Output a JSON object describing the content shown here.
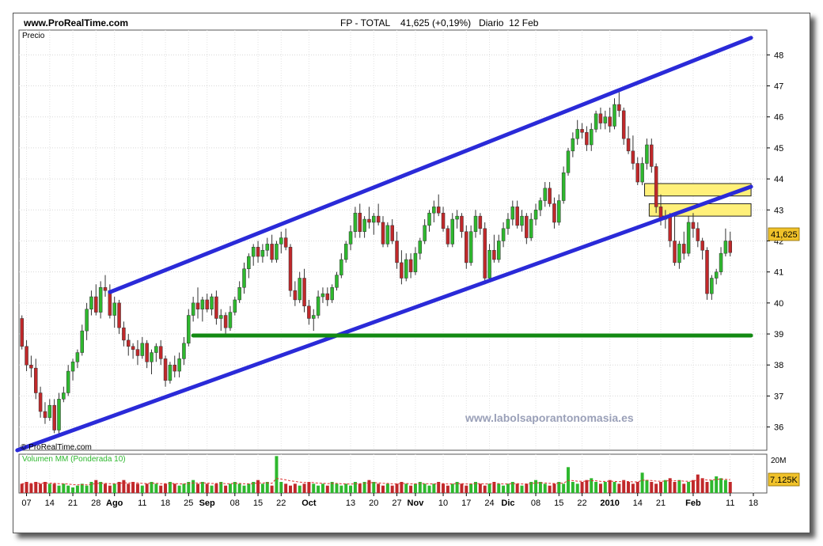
{
  "header": {
    "site": "www.ProRealTime.com",
    "title": "FP - TOTAL    41,625 (+0,19%)   Diario  12 Feb"
  },
  "panels": {
    "price_label": "Precio",
    "copyright": "© ProRealTime.com",
    "volume_label": "Volumen MM (Ponderada 10)",
    "watermark": "www.labolsaporantonomasia.es"
  },
  "colors": {
    "up": "#2eb82e",
    "down": "#c0282a",
    "channel": "#2a2ad8",
    "support": "#138a13",
    "zone_fill": "#fff07a",
    "zone_stroke": "#222222",
    "last_price_bg": "#f0c22a",
    "volume_ma": "#e03030",
    "watermark": "#9aa0b8"
  },
  "chart_data": [
    {
      "type": "candlestick",
      "title": "FP - TOTAL",
      "ylabel": "Precio",
      "ylim": [
        35.25,
        48.8
      ],
      "yticks": [
        36,
        37,
        38,
        39,
        40,
        41,
        42,
        43,
        44,
        45,
        46,
        47,
        48
      ],
      "x_tick_labels": [
        {
          "day": 1,
          "label": "07"
        },
        {
          "day": 6,
          "label": "14"
        },
        {
          "day": 11,
          "label": "21"
        },
        {
          "day": 16,
          "label": "28"
        },
        {
          "day": 20,
          "label": "Ago",
          "bold": true
        },
        {
          "day": 26,
          "label": "11"
        },
        {
          "day": 31,
          "label": "18"
        },
        {
          "day": 36,
          "label": "25"
        },
        {
          "day": 40,
          "label": "Sep",
          "bold": true
        },
        {
          "day": 46,
          "label": "08"
        },
        {
          "day": 51,
          "label": "15"
        },
        {
          "day": 56,
          "label": "22"
        },
        {
          "day": 62,
          "label": "Oct",
          "bold": true
        },
        {
          "day": 71,
          "label": "13"
        },
        {
          "day": 76,
          "label": "20"
        },
        {
          "day": 81,
          "label": "27"
        },
        {
          "day": 85,
          "label": "Nov",
          "bold": true
        },
        {
          "day": 91,
          "label": "10"
        },
        {
          "day": 96,
          "label": "17"
        },
        {
          "day": 101,
          "label": "24"
        },
        {
          "day": 105,
          "label": "Dic",
          "bold": true
        },
        {
          "day": 111,
          "label": "08"
        },
        {
          "day": 116,
          "label": "15"
        },
        {
          "day": 121,
          "label": "22"
        },
        {
          "day": 127,
          "label": "2010",
          "bold": true
        },
        {
          "day": 133,
          "label": "14"
        },
        {
          "day": 138,
          "label": "21"
        },
        {
          "day": 145,
          "label": "Feb",
          "bold": true
        },
        {
          "day": 153,
          "label": "11"
        },
        {
          "day": 158,
          "label": "18"
        }
      ],
      "last_price": 41.625,
      "last_price_label": "41,625",
      "candles": [
        [
          39.5,
          39.6,
          38.5,
          38.6
        ],
        [
          38.6,
          38.8,
          37.8,
          38
        ],
        [
          38,
          38.3,
          37.6,
          37.9
        ],
        [
          37.9,
          38.2,
          36.9,
          37.1
        ],
        [
          37.1,
          37.3,
          36.3,
          36.5
        ],
        [
          36.5,
          36.8,
          36.1,
          36.3
        ],
        [
          36.3,
          36.9,
          36.2,
          36.7
        ],
        [
          36.7,
          36.9,
          35.8,
          35.9
        ],
        [
          35.9,
          37.1,
          35.8,
          36.9
        ],
        [
          36.9,
          37.3,
          36.8,
          37.1
        ],
        [
          37.1,
          38,
          37,
          37.8
        ],
        [
          37.8,
          38.2,
          37.5,
          38.1
        ],
        [
          38.1,
          38.5,
          37.9,
          38.4
        ],
        [
          38.4,
          39.3,
          38.3,
          39.1
        ],
        [
          39.1,
          40,
          38.8,
          39.8
        ],
        [
          39.8,
          40.4,
          39.6,
          40.2
        ],
        [
          40.2,
          40.6,
          39.6,
          39.7
        ],
        [
          39.7,
          40.7,
          39.5,
          40.5
        ],
        [
          40.5,
          40.9,
          40.2,
          40.4
        ],
        [
          40.4,
          40.6,
          39.5,
          39.6
        ],
        [
          39.6,
          40.2,
          39.2,
          40
        ],
        [
          40,
          40.1,
          39,
          39.2
        ],
        [
          39.2,
          39.4,
          38.6,
          38.8
        ],
        [
          38.8,
          39,
          38.3,
          38.6
        ],
        [
          38.6,
          38.7,
          38.2,
          38.5
        ],
        [
          38.5,
          38.8,
          38,
          38.3
        ],
        [
          38.3,
          38.9,
          38.2,
          38.7
        ],
        [
          38.7,
          38.8,
          37.9,
          38.1
        ],
        [
          38.1,
          38.5,
          37.7,
          38.4
        ],
        [
          38.4,
          38.7,
          38.1,
          38.6
        ],
        [
          38.6,
          38.8,
          38,
          38.2
        ],
        [
          38.2,
          38.3,
          37.3,
          37.5
        ],
        [
          37.5,
          38.1,
          37.4,
          38
        ],
        [
          38,
          38.3,
          37.6,
          37.8
        ],
        [
          37.8,
          38.4,
          37.6,
          38.2
        ],
        [
          38.2,
          38.9,
          38,
          38.7
        ],
        [
          38.7,
          39.8,
          38.6,
          39.6
        ],
        [
          39.6,
          40.2,
          39.4,
          40
        ],
        [
          40,
          40.5,
          39.5,
          39.8
        ],
        [
          39.8,
          40.2,
          39.4,
          40.1
        ],
        [
          40.1,
          40.3,
          39.7,
          39.8
        ],
        [
          39.8,
          40.3,
          39.6,
          40.2
        ],
        [
          40.2,
          40.4,
          39.3,
          39.5
        ],
        [
          39.5,
          39.8,
          39.1,
          39.6
        ],
        [
          39.6,
          39.7,
          39,
          39.2
        ],
        [
          39.2,
          39.9,
          39.1,
          39.7
        ],
        [
          39.7,
          40.2,
          39.6,
          40.1
        ],
        [
          40.1,
          40.7,
          40,
          40.5
        ],
        [
          40.5,
          41.3,
          40.3,
          41.1
        ],
        [
          41.1,
          41.6,
          40.8,
          41.5
        ],
        [
          41.5,
          41.9,
          41.2,
          41.8
        ],
        [
          41.8,
          42,
          41.3,
          41.5
        ],
        [
          41.5,
          41.9,
          41.3,
          41.7
        ],
        [
          41.7,
          42.1,
          41.5,
          41.9
        ],
        [
          41.9,
          42.2,
          41.3,
          41.4
        ],
        [
          41.4,
          42,
          41.3,
          41.9
        ],
        [
          41.9,
          42.3,
          41.6,
          42.1
        ],
        [
          42.1,
          42.4,
          41.7,
          41.8
        ],
        [
          41.8,
          41.9,
          40.2,
          40.4
        ],
        [
          40.4,
          40.7,
          39.9,
          40.1
        ],
        [
          40.1,
          41,
          40,
          40.8
        ],
        [
          40.8,
          41.1,
          39.7,
          39.9
        ],
        [
          39.9,
          40.1,
          39.3,
          39.5
        ],
        [
          39.5,
          39.8,
          39.1,
          39.6
        ],
        [
          39.6,
          40.4,
          39.5,
          40.2
        ],
        [
          40.2,
          40.5,
          40,
          40.3
        ],
        [
          40.3,
          40.5,
          39.9,
          40.1
        ],
        [
          40.1,
          40.6,
          40,
          40.5
        ],
        [
          40.5,
          41,
          40.4,
          40.9
        ],
        [
          40.9,
          41.6,
          40.8,
          41.4
        ],
        [
          41.4,
          42,
          41.3,
          41.9
        ],
        [
          41.9,
          42.5,
          41.7,
          42.3
        ],
        [
          42.3,
          43.1,
          42.1,
          42.9
        ],
        [
          42.9,
          43.2,
          42.1,
          42.3
        ],
        [
          42.3,
          42.8,
          42.1,
          42.7
        ],
        [
          42.7,
          43.1,
          42.4,
          42.6
        ],
        [
          42.6,
          42.9,
          42.2,
          42.8
        ],
        [
          42.8,
          43.2,
          42.5,
          42.6
        ],
        [
          42.6,
          42.8,
          41.8,
          41.9
        ],
        [
          41.9,
          42.6,
          41.8,
          42.5
        ],
        [
          42.5,
          42.7,
          41.9,
          42
        ],
        [
          42,
          42.3,
          41.1,
          41.3
        ],
        [
          41.3,
          41.7,
          40.6,
          40.8
        ],
        [
          40.8,
          41.6,
          40.7,
          41.4
        ],
        [
          41.4,
          41.6,
          40.8,
          41
        ],
        [
          41,
          41.8,
          40.9,
          41.6
        ],
        [
          41.6,
          42.1,
          41.4,
          42
        ],
        [
          42,
          42.7,
          41.9,
          42.5
        ],
        [
          42.5,
          43,
          42.3,
          42.9
        ],
        [
          42.9,
          43.3,
          42.6,
          43.1
        ],
        [
          43.1,
          43.5,
          42.8,
          42.9
        ],
        [
          42.9,
          43.1,
          42.3,
          42.4
        ],
        [
          42.4,
          42.5,
          41.8,
          41.9
        ],
        [
          41.9,
          42.9,
          41.8,
          42.7
        ],
        [
          42.7,
          43,
          42.4,
          42.8
        ],
        [
          42.8,
          42.9,
          42.1,
          42.3
        ],
        [
          42.3,
          42.5,
          41.1,
          41.3
        ],
        [
          41.3,
          42.5,
          41.2,
          42.3
        ],
        [
          42.3,
          43,
          42.1,
          42.8
        ],
        [
          42.8,
          42.9,
          42.2,
          42.4
        ],
        [
          42.4,
          42.6,
          40.6,
          40.8
        ],
        [
          40.8,
          41.9,
          40.7,
          41.7
        ],
        [
          41.7,
          42.2,
          41.3,
          41.4
        ],
        [
          41.4,
          42.2,
          41.3,
          42
        ],
        [
          42,
          42.6,
          41.8,
          42.4
        ],
        [
          42.4,
          42.9,
          42.2,
          42.7
        ],
        [
          42.7,
          43.3,
          42.5,
          43.1
        ],
        [
          43.1,
          43.3,
          42.4,
          42.5
        ],
        [
          42.5,
          43,
          42.3,
          42.8
        ],
        [
          42.8,
          42.9,
          41.9,
          42.1
        ],
        [
          42.1,
          42.9,
          42,
          42.7
        ],
        [
          42.7,
          43.2,
          42.5,
          43
        ],
        [
          43,
          43.4,
          42.8,
          43.3
        ],
        [
          43.3,
          43.9,
          43.1,
          43.7
        ],
        [
          43.7,
          43.9,
          43.1,
          43.2
        ],
        [
          43.2,
          43.4,
          42.4,
          42.6
        ],
        [
          42.6,
          43.5,
          42.5,
          43.3
        ],
        [
          43.3,
          44.4,
          43.2,
          44.2
        ],
        [
          44.2,
          45,
          44.1,
          44.9
        ],
        [
          44.9,
          45.5,
          44.7,
          45.3
        ],
        [
          45.3,
          45.9,
          45.1,
          45.6
        ],
        [
          45.6,
          45.8,
          45.3,
          45.5
        ],
        [
          45.5,
          45.7,
          44.9,
          45.1
        ],
        [
          45.1,
          45.8,
          44.9,
          45.6
        ],
        [
          45.6,
          46.2,
          45.5,
          46.1
        ],
        [
          46.1,
          46.3,
          45.6,
          45.8
        ],
        [
          45.8,
          46.2,
          45.6,
          46
        ],
        [
          46,
          46.3,
          45.5,
          45.7
        ],
        [
          45.7,
          46.6,
          45.6,
          46.4
        ],
        [
          46.4,
          46.8,
          46,
          46.2
        ],
        [
          46.2,
          46.3,
          45.1,
          45.3
        ],
        [
          45.3,
          45.7,
          44.8,
          44.9
        ],
        [
          44.9,
          45.4,
          44.3,
          44.5
        ],
        [
          44.5,
          44.7,
          43.8,
          43.9
        ],
        [
          43.9,
          44.7,
          43.8,
          44.5
        ],
        [
          44.5,
          45.3,
          44.3,
          45.1
        ],
        [
          45.1,
          45.3,
          44.2,
          44.4
        ],
        [
          44.4,
          44.5,
          42.9,
          43.1
        ],
        [
          43.1,
          43.5,
          42.5,
          42.7
        ],
        [
          42.7,
          43,
          42.4,
          42.8
        ],
        [
          42.8,
          42.9,
          41.8,
          42
        ],
        [
          42,
          42.8,
          41.2,
          41.3
        ],
        [
          41.3,
          42,
          41.1,
          41.9
        ],
        [
          41.9,
          42.3,
          41.4,
          41.6
        ],
        [
          41.6,
          42.8,
          41.5,
          42.6
        ],
        [
          42.6,
          42.9,
          42.1,
          42.4
        ],
        [
          42.4,
          42.6,
          41.8,
          42
        ],
        [
          42,
          42.1,
          41.4,
          41.7
        ],
        [
          41.7,
          41.8,
          40.1,
          40.3
        ],
        [
          40.3,
          40.9,
          40.1,
          40.8
        ],
        [
          40.8,
          41.1,
          40.6,
          41
        ],
        [
          41,
          41.8,
          40.9,
          41.6
        ],
        [
          41.6,
          42.4,
          41.5,
          42
        ],
        [
          42,
          42.3,
          41.5,
          41.625
        ]
      ],
      "trendlines": [
        {
          "name": "canal-superior",
          "from": [
            19,
            40.35
          ],
          "to": [
            157.5,
            48.55
          ]
        },
        {
          "name": "canal-inferior",
          "from": [
            -1,
            35.25
          ],
          "to": [
            157.5,
            43.75
          ]
        },
        {
          "name": "soporte",
          "from": [
            37,
            38.95
          ],
          "to": [
            157.5,
            38.95
          ]
        }
      ],
      "zones": [
        {
          "name": "zona-resistencia-alta",
          "day_start": 134.5,
          "day_end": 157.5,
          "low": 43.45,
          "high": 43.85
        },
        {
          "name": "zona-resistencia-baja",
          "day_start": 135.5,
          "day_end": 157.5,
          "low": 42.8,
          "high": 43.2
        }
      ]
    },
    {
      "type": "bar",
      "title": "Volumen MM (Ponderada 10)",
      "ylim": [
        0,
        21000000
      ],
      "yticks_label": "20M",
      "last_value_label": "7.125K",
      "volume": [
        5,
        6,
        5,
        6,
        5,
        6,
        5,
        5,
        4,
        5,
        4,
        3,
        4,
        5,
        4,
        6,
        7,
        6,
        5,
        4,
        5,
        6,
        7,
        5,
        6,
        5,
        4,
        5,
        6,
        5,
        4,
        5,
        6,
        5,
        4,
        5,
        6,
        7,
        5,
        6,
        5,
        4,
        5,
        6,
        4,
        5,
        6,
        5,
        4,
        5,
        6,
        7,
        5,
        6,
        4,
        20,
        6,
        5,
        4,
        5,
        4,
        5,
        6,
        5,
        4,
        5,
        4,
        6,
        5,
        4,
        5,
        4,
        6,
        5,
        6,
        7,
        6,
        5,
        4,
        5,
        4,
        5,
        6,
        5,
        4,
        5,
        6,
        5,
        4,
        5,
        6,
        5,
        4,
        5,
        6,
        5,
        4,
        5,
        6,
        5,
        4,
        5,
        6,
        5,
        4,
        5,
        6,
        5,
        4,
        5,
        6,
        7,
        6,
        5,
        4,
        5,
        6,
        5,
        14,
        6,
        5,
        6,
        7,
        8,
        6,
        5,
        6,
        7,
        6,
        5,
        7,
        6,
        5,
        6,
        11,
        7,
        6,
        5,
        6,
        7,
        8,
        6,
        7,
        5,
        6,
        7,
        10,
        8,
        6,
        7,
        9,
        8,
        7,
        6
      ]
    }
  ]
}
